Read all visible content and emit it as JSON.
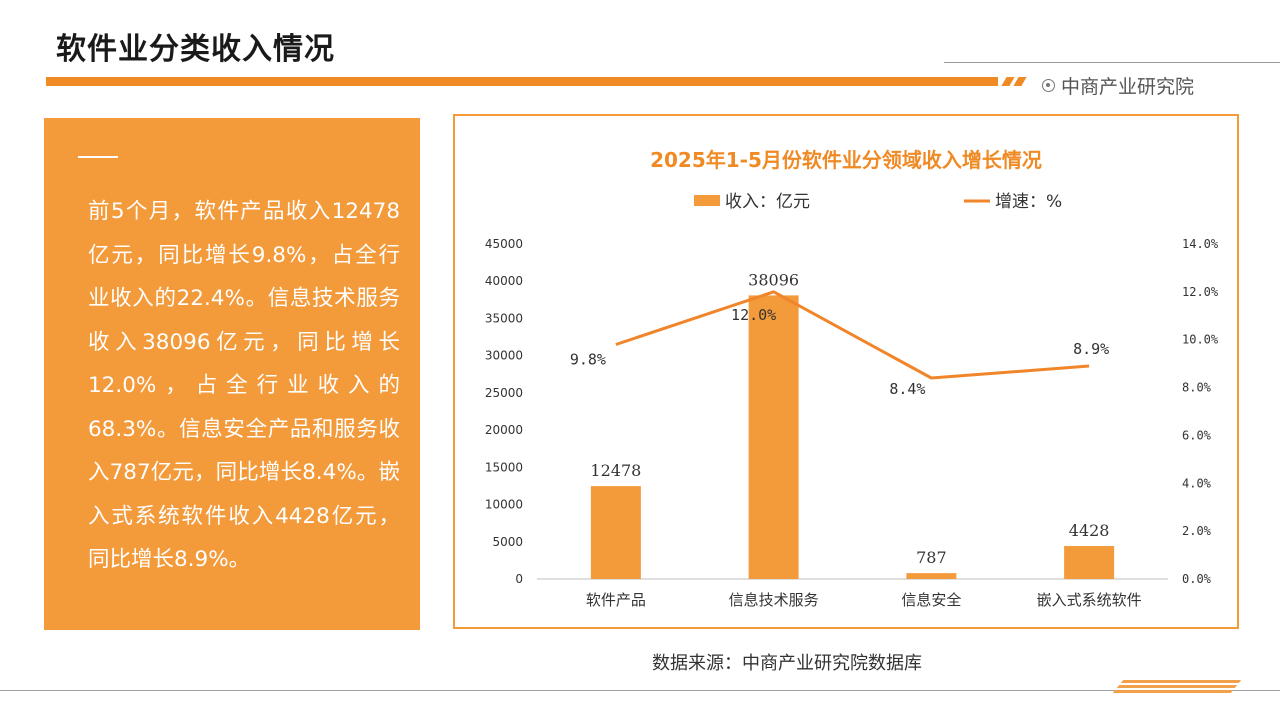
{
  "header": {
    "title": "软件业分类收入情况",
    "brand": "中商产业研究院"
  },
  "summary": {
    "text": "前5个月，软件产品收入12478亿元，同比增长9.8%，占全行业收入的22.4%。信息技术服务收入38096亿元，同比增长12.0%，占全行业收入的68.3%。信息安全产品和服务收入787亿元，同比增长8.4%。嵌入式系统软件收入4428亿元，同比增长8.9%。"
  },
  "footer": {
    "source": "数据来源：中商产业研究院数据库"
  },
  "colors": {
    "accent": "#f08a24",
    "panel": "#f39a3b",
    "bar": "#f39a3b",
    "line": "#f0852a"
  },
  "chart_data": {
    "type": "bar",
    "title": "2025年1-5月份软件业分领域收入增长情况",
    "categories": [
      "软件产品",
      "信息技术服务",
      "信息安全",
      "嵌入式系统软件"
    ],
    "series": [
      {
        "name": "收入：亿元",
        "type": "bar",
        "axis": "left",
        "values": [
          12478,
          38096,
          787,
          4428
        ],
        "labels": [
          "12478",
          "38096",
          "787",
          "4428"
        ]
      },
      {
        "name": "增速：%",
        "type": "line",
        "axis": "right",
        "values": [
          9.8,
          12.0,
          8.4,
          8.9
        ],
        "labels": [
          "9.8%",
          "12.0%",
          "8.4%",
          "8.9%"
        ]
      }
    ],
    "y_left": {
      "range": [
        0,
        45000
      ],
      "ticks": [
        "0",
        "5000",
        "10000",
        "15000",
        "20000",
        "25000",
        "30000",
        "35000",
        "40000",
        "45000"
      ]
    },
    "y_right": {
      "range": [
        0,
        14
      ],
      "ticks": [
        "0.0%",
        "2.0%",
        "4.0%",
        "6.0%",
        "8.0%",
        "10.0%",
        "12.0%",
        "14.0%"
      ]
    },
    "legend_position": "top-center",
    "grid": false
  }
}
